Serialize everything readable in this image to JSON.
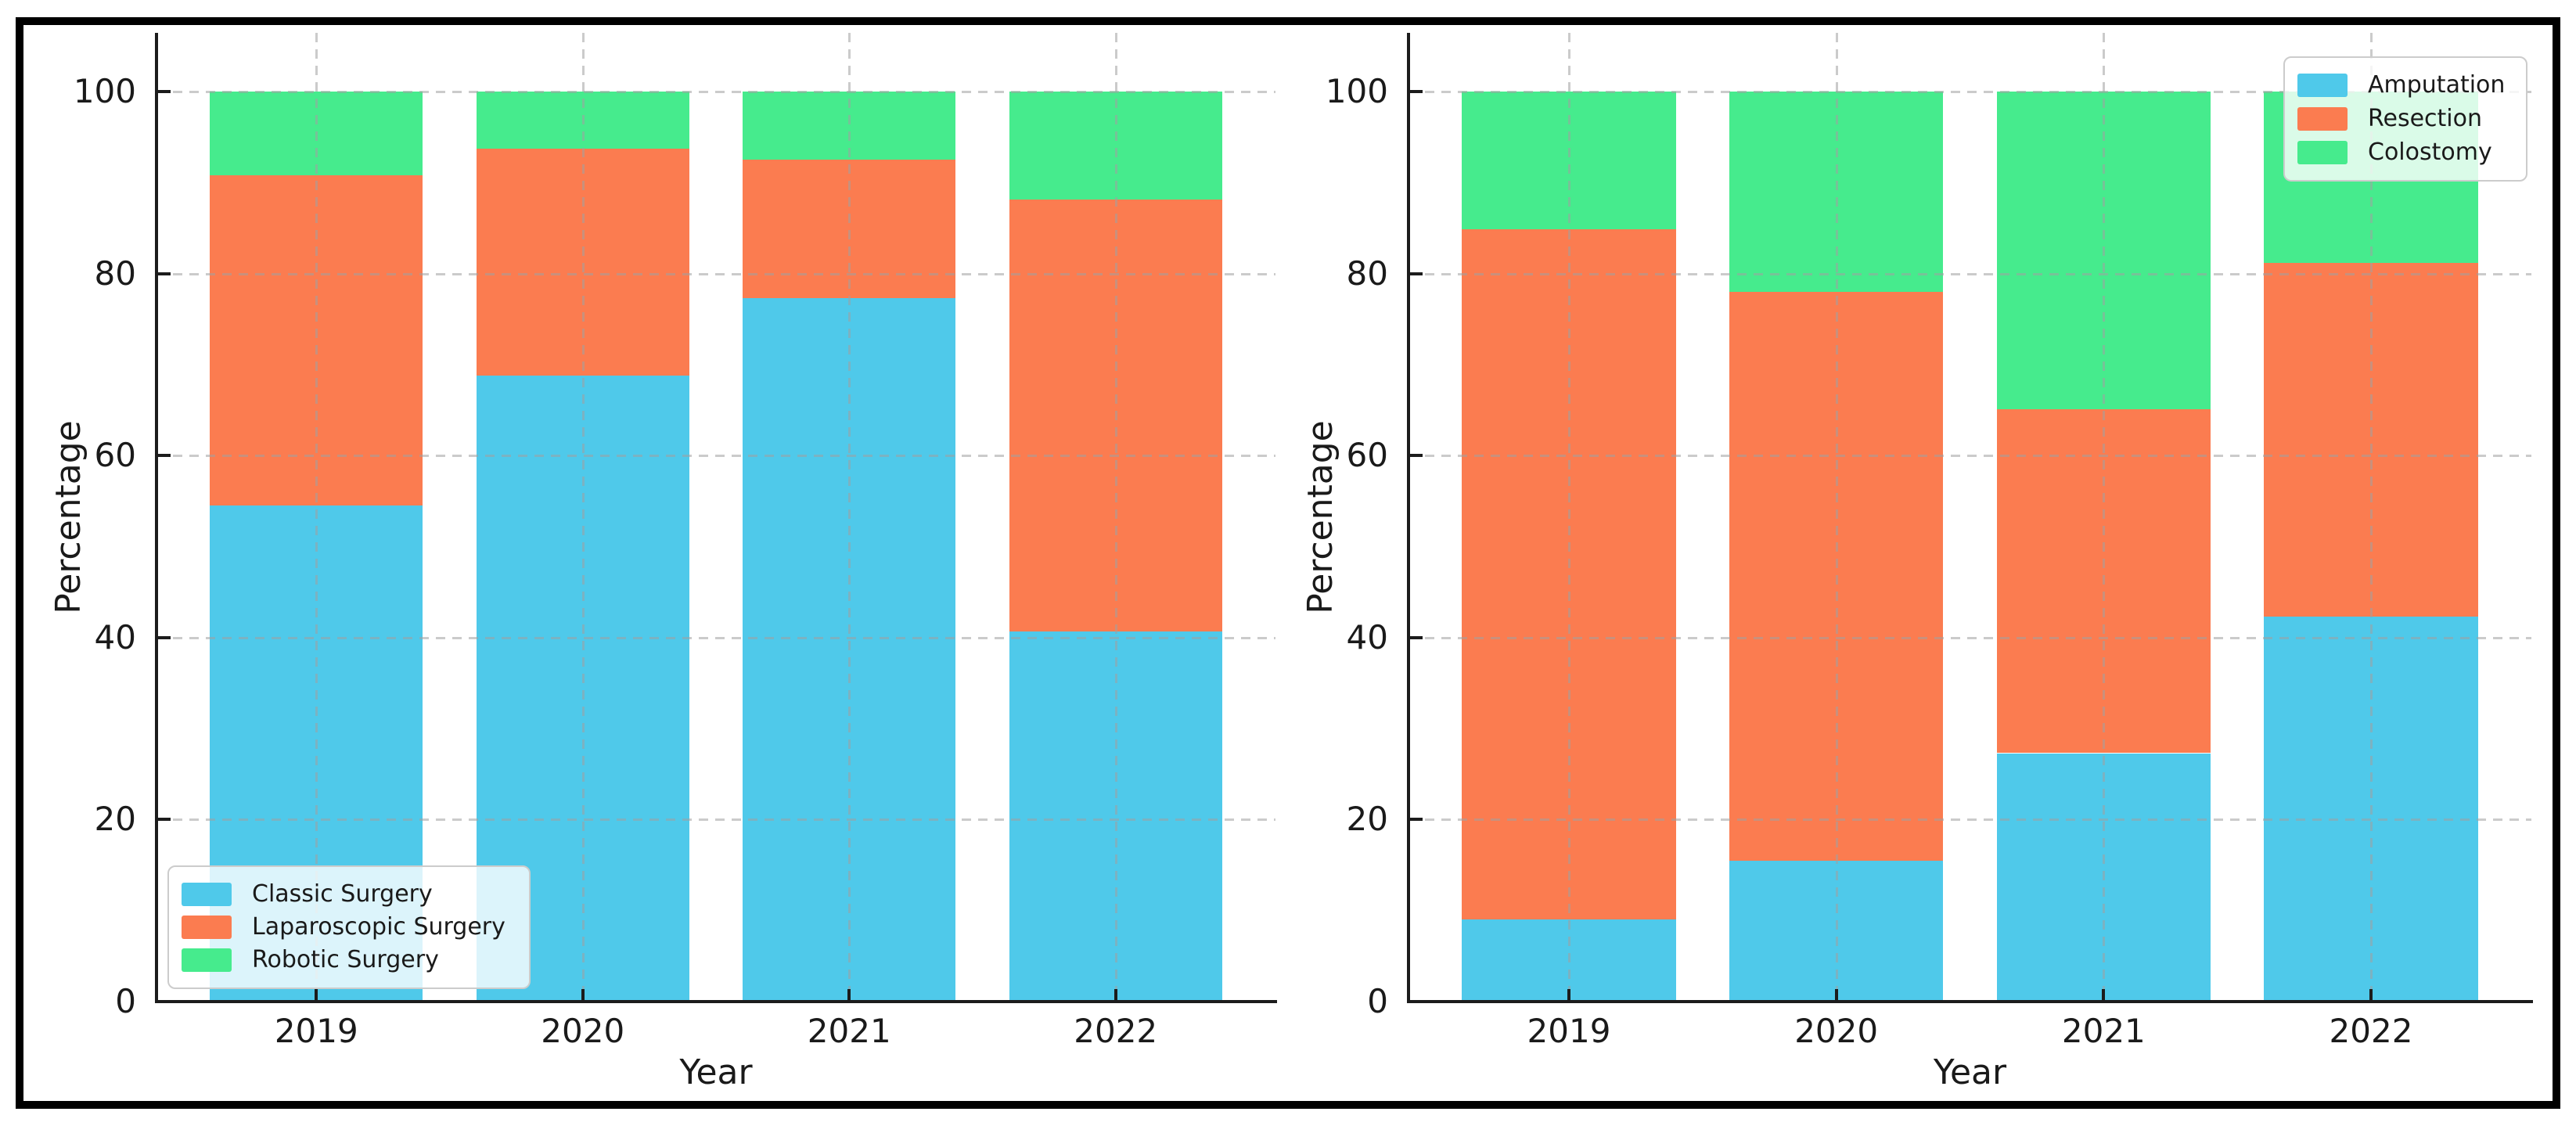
{
  "figure": {
    "background": "#ffffff",
    "frame_color": "#000000",
    "axis_color": "#1c1c1c",
    "text_color": "#1a1a1a",
    "grid_color": "#a0a0a0",
    "legend_background": "rgba(255,255,255,0.8)"
  },
  "chart_data": [
    {
      "type": "bar",
      "stacked": true,
      "title": "",
      "xlabel": "Year",
      "ylabel": "Percentage",
      "categories": [
        "2019",
        "2020",
        "2021",
        "2022"
      ],
      "series": [
        {
          "name": "Classic Surgery",
          "color": "#4FC9EA",
          "values": [
            54.5,
            68.8,
            77.3,
            40.7
          ]
        },
        {
          "name": "Laparoscopic Surgery",
          "color": "#FB7C50",
          "values": [
            36.3,
            24.9,
            15.2,
            47.4
          ]
        },
        {
          "name": "Robotic Surgery",
          "color": "#46EB8D",
          "values": [
            9.2,
            6.3,
            7.5,
            11.9
          ]
        }
      ],
      "ylim": [
        0,
        105
      ],
      "yticks": [
        0,
        20,
        40,
        60,
        80,
        100
      ],
      "grid": true,
      "legend_position": "lower left"
    },
    {
      "type": "bar",
      "stacked": true,
      "title": "",
      "xlabel": "Year",
      "ylabel": "Percentage",
      "categories": [
        "2019",
        "2020",
        "2021",
        "2022"
      ],
      "series": [
        {
          "name": "Amputation",
          "color": "#4FC9EA",
          "values": [
            9.0,
            15.5,
            27.3,
            42.3
          ]
        },
        {
          "name": "Resection",
          "color": "#FB7C50",
          "values": [
            75.9,
            62.5,
            37.8,
            38.9
          ]
        },
        {
          "name": "Colostomy",
          "color": "#46EB8D",
          "values": [
            15.1,
            22.0,
            34.9,
            18.8
          ]
        }
      ],
      "ylim": [
        0,
        105
      ],
      "yticks": [
        0,
        20,
        40,
        60,
        80,
        100
      ],
      "grid": true,
      "legend_position": "upper right"
    }
  ]
}
